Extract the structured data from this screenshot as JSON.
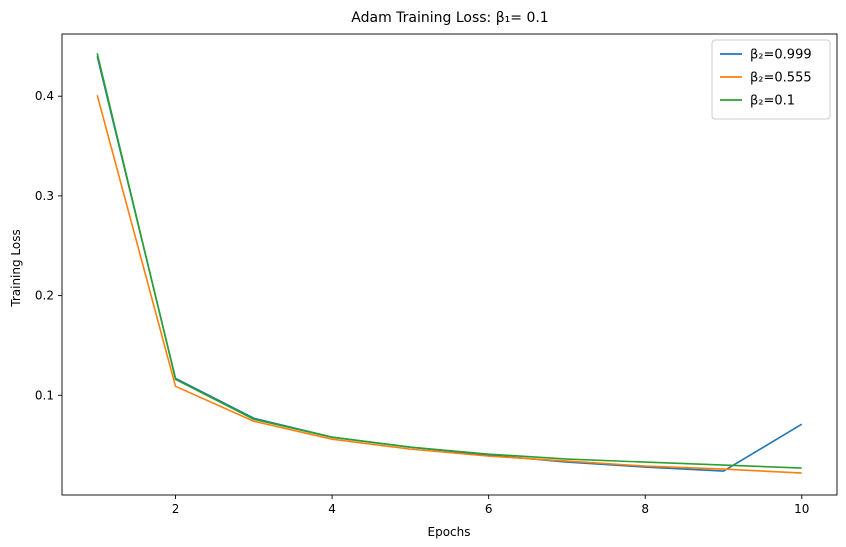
{
  "chart_data": {
    "type": "line",
    "title": "Adam Training Loss: β₁= 0.1",
    "xlabel": "Epochs",
    "ylabel": "Training Loss",
    "xlim": [
      0.55,
      10.45
    ],
    "ylim": [
      0.0,
      0.4624
    ],
    "xticks": [
      2,
      4,
      6,
      8,
      10
    ],
    "yticks": [
      0.1,
      0.2,
      0.3,
      0.4
    ],
    "ytick_labels": [
      "0.1",
      "0.2",
      "0.3",
      "0.4"
    ],
    "grid": false,
    "legend_position": "top-right",
    "x": [
      1,
      2,
      3,
      4,
      5,
      6,
      7,
      8,
      9,
      10
    ],
    "series": [
      {
        "name": "β₂=0.999",
        "color": "#1f77b4",
        "values": [
          0.44,
          0.117,
          0.077,
          0.058,
          0.048,
          0.04,
          0.033,
          0.028,
          0.024,
          0.071
        ]
      },
      {
        "name": "β₂=0.555",
        "color": "#ff7f0e",
        "values": [
          0.401,
          0.109,
          0.074,
          0.056,
          0.046,
          0.039,
          0.034,
          0.029,
          0.026,
          0.022
        ]
      },
      {
        "name": "β₂=0.1",
        "color": "#2ca02c",
        "values": [
          0.443,
          0.116,
          0.076,
          0.058,
          0.048,
          0.041,
          0.036,
          0.033,
          0.03,
          0.027
        ]
      }
    ]
  }
}
